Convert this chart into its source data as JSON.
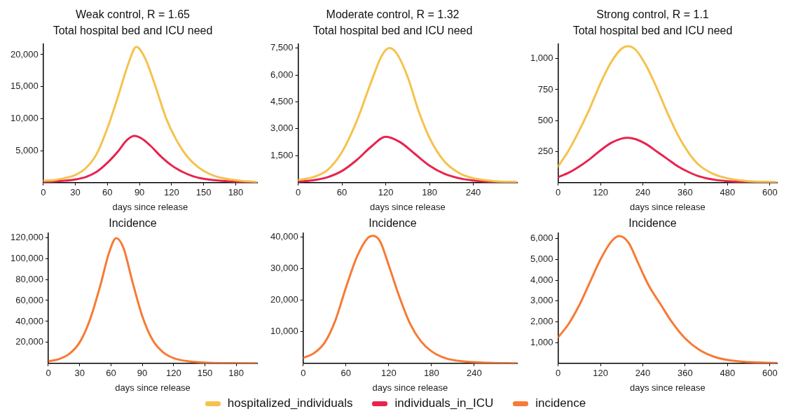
{
  "chart_data": [
    {
      "type": "line",
      "title": "Weak control, R = 1.65",
      "subtitle": "Total hospital bed and ICU need",
      "xlabel": "days since release",
      "xlim": [
        0,
        200
      ],
      "xticks": [
        0,
        30,
        60,
        90,
        120,
        150,
        180
      ],
      "ylim": [
        0,
        21700
      ],
      "yticks": [
        {
          "value": 5000,
          "label": "5,000"
        },
        {
          "value": 10000,
          "label": "10,000"
        },
        {
          "value": 15000,
          "label": "15,000"
        },
        {
          "value": 20000,
          "label": "20,000"
        }
      ],
      "grid": false,
      "legend": "bottom",
      "series": [
        {
          "name": "hospitalized_individuals",
          "color": "#f5c24c",
          "x": [
            0,
            10,
            20,
            30,
            40,
            50,
            60,
            70,
            80,
            87,
            95,
            105,
            115,
            125,
            135,
            145,
            155,
            165,
            180,
            200
          ],
          "values": [
            300,
            400,
            700,
            1200,
            2300,
            4500,
            8500,
            13500,
            18800,
            21200,
            19500,
            15000,
            10000,
            6500,
            4000,
            2400,
            1400,
            800,
            400,
            100
          ]
        },
        {
          "name": "individuals_in_ICU",
          "color": "#e8234f",
          "x": [
            0,
            10,
            20,
            30,
            40,
            50,
            60,
            70,
            78,
            85,
            92,
            100,
            110,
            120,
            130,
            140,
            150,
            160,
            175,
            200
          ],
          "values": [
            100,
            200,
            300,
            500,
            900,
            1700,
            3100,
            4900,
            6600,
            7300,
            6900,
            5800,
            4100,
            2700,
            1700,
            1000,
            600,
            400,
            200,
            0
          ]
        }
      ]
    },
    {
      "type": "line",
      "title": "Moderate control, R = 1.32",
      "subtitle": "Total hospital bed and ICU need",
      "xlabel": "days since release",
      "xlim": [
        0,
        300
      ],
      "xticks": [
        0,
        60,
        120,
        180,
        240
      ],
      "ylim": [
        0,
        7740
      ],
      "yticks": [
        {
          "value": 1500,
          "label": "1,500"
        },
        {
          "value": 3000,
          "label": "3,000"
        },
        {
          "value": 4500,
          "label": "4,500"
        },
        {
          "value": 6000,
          "label": "6,000"
        },
        {
          "value": 7500,
          "label": "7,500"
        }
      ],
      "grid": false,
      "series": [
        {
          "color": "#f5c24c",
          "x": [
            0,
            20,
            40,
            60,
            80,
            100,
            115,
            125,
            135,
            150,
            165,
            180,
            200,
            220,
            240,
            270,
            300
          ],
          "values": [
            150,
            300,
            700,
            1700,
            3400,
            5600,
            7100,
            7500,
            7200,
            5900,
            4000,
            2500,
            1200,
            550,
            250,
            80,
            30
          ]
        },
        {
          "color": "#e8234f",
          "x": [
            0,
            20,
            40,
            60,
            80,
            100,
            120,
            140,
            160,
            180,
            200,
            220,
            240,
            270,
            300
          ],
          "values": [
            60,
            130,
            300,
            650,
            1250,
            2000,
            2560,
            2250,
            1600,
            950,
            500,
            250,
            120,
            40,
            20
          ]
        }
      ]
    },
    {
      "type": "line",
      "title": "Strong control, R = 1.1",
      "subtitle": "Total hospital bed and ICU need",
      "xlabel": "days since release",
      "xlim": [
        0,
        620
      ],
      "xticks": [
        0,
        120,
        240,
        360,
        480,
        600
      ],
      "ylim": [
        0,
        1120
      ],
      "yticks": [
        250,
        500,
        750,
        {
          "value": 1000,
          "label": "1,000"
        }
      ],
      "grid": false,
      "series": [
        {
          "color": "#f5c24c",
          "x": [
            0,
            30,
            60,
            90,
            120,
            150,
            180,
            198,
            220,
            250,
            280,
            310,
            340,
            370,
            400,
            440,
            480,
            540,
            620
          ],
          "values": [
            130,
            260,
            420,
            600,
            800,
            970,
            1080,
            1100,
            1070,
            940,
            760,
            560,
            380,
            240,
            140,
            70,
            35,
            12,
            5
          ]
        },
        {
          "color": "#e8234f",
          "x": [
            0,
            30,
            60,
            90,
            120,
            150,
            180,
            196,
            220,
            250,
            280,
            310,
            340,
            370,
            400,
            440,
            480,
            540,
            620
          ],
          "values": [
            45,
            80,
            130,
            190,
            260,
            320,
            355,
            362,
            350,
            310,
            250,
            190,
            130,
            85,
            50,
            25,
            12,
            5,
            2
          ]
        }
      ]
    },
    {
      "type": "line",
      "title": "Incidence",
      "xlabel": "days since release",
      "xlim": [
        0,
        200
      ],
      "xticks": [
        0,
        30,
        60,
        90,
        120,
        150,
        180
      ],
      "ylim": [
        0,
        124000
      ],
      "yticks": [
        {
          "value": 20000,
          "label": "20,000"
        },
        {
          "value": 40000,
          "label": "40,000"
        },
        {
          "value": 60000,
          "label": "60,000"
        },
        {
          "value": 80000,
          "label": "80,000"
        },
        {
          "value": 100000,
          "label": "100,000"
        },
        {
          "value": 120000,
          "label": "120,000"
        }
      ],
      "grid": false,
      "legend": "bottom",
      "series": [
        {
          "name": "incidence",
          "color": "#f77a35",
          "x": [
            0,
            10,
            20,
            30,
            40,
            50,
            58,
            65,
            72,
            80,
            90,
            100,
            110,
            120,
            135,
            150,
            170,
            200
          ],
          "values": [
            2000,
            4000,
            9000,
            20000,
            42000,
            75000,
            105000,
            119500,
            110000,
            80000,
            45000,
            22000,
            10500,
            5000,
            1800,
            700,
            200,
            0
          ]
        }
      ]
    },
    {
      "type": "line",
      "title": "Incidence",
      "xlabel": "days since release",
      "xlim": [
        0,
        300
      ],
      "xticks": [
        0,
        60,
        120,
        180,
        240
      ],
      "ylim": [
        0,
        41100
      ],
      "yticks": [
        {
          "value": 10000,
          "label": "10,000"
        },
        {
          "value": 20000,
          "label": "20,000"
        },
        {
          "value": 30000,
          "label": "30,000"
        },
        {
          "value": 40000,
          "label": "40,000"
        }
      ],
      "grid": false,
      "series": [
        {
          "color": "#f77a35",
          "x": [
            0,
            15,
            30,
            45,
            60,
            75,
            90,
            98,
            108,
            120,
            135,
            150,
            165,
            180,
            200,
            225,
            260,
            300
          ],
          "values": [
            1700,
            3200,
            6500,
            13500,
            24000,
            33500,
            39500,
            40300,
            38500,
            31000,
            21000,
            12500,
            7000,
            3800,
            1600,
            600,
            200,
            0
          ]
        }
      ]
    },
    {
      "type": "line",
      "title": "Incidence",
      "xlabel": "days since release",
      "xlim": [
        0,
        620
      ],
      "xticks": [
        0,
        120,
        240,
        360,
        480,
        600
      ],
      "ylim": [
        0,
        6260
      ],
      "yticks": [
        {
          "value": 1000,
          "label": "1,000"
        },
        {
          "value": 2000,
          "label": "2,000"
        },
        {
          "value": 3000,
          "label": "3,000"
        },
        {
          "value": 4000,
          "label": "4,000"
        },
        {
          "value": 5000,
          "label": "5,000"
        },
        {
          "value": 6000,
          "label": "6,000"
        }
      ],
      "grid": false,
      "series": [
        {
          "color": "#f77a35",
          "x": [
            0,
            30,
            60,
            90,
            120,
            150,
            173,
            200,
            225,
            245,
            260,
            290,
            320,
            360,
            400,
            440,
            480,
            540,
            620
          ],
          "values": [
            1250,
            1900,
            2800,
            3900,
            5000,
            5850,
            6130,
            5800,
            4900,
            4150,
            3650,
            2850,
            2050,
            1200,
            650,
            330,
            160,
            60,
            20
          ]
        }
      ]
    }
  ]
}
